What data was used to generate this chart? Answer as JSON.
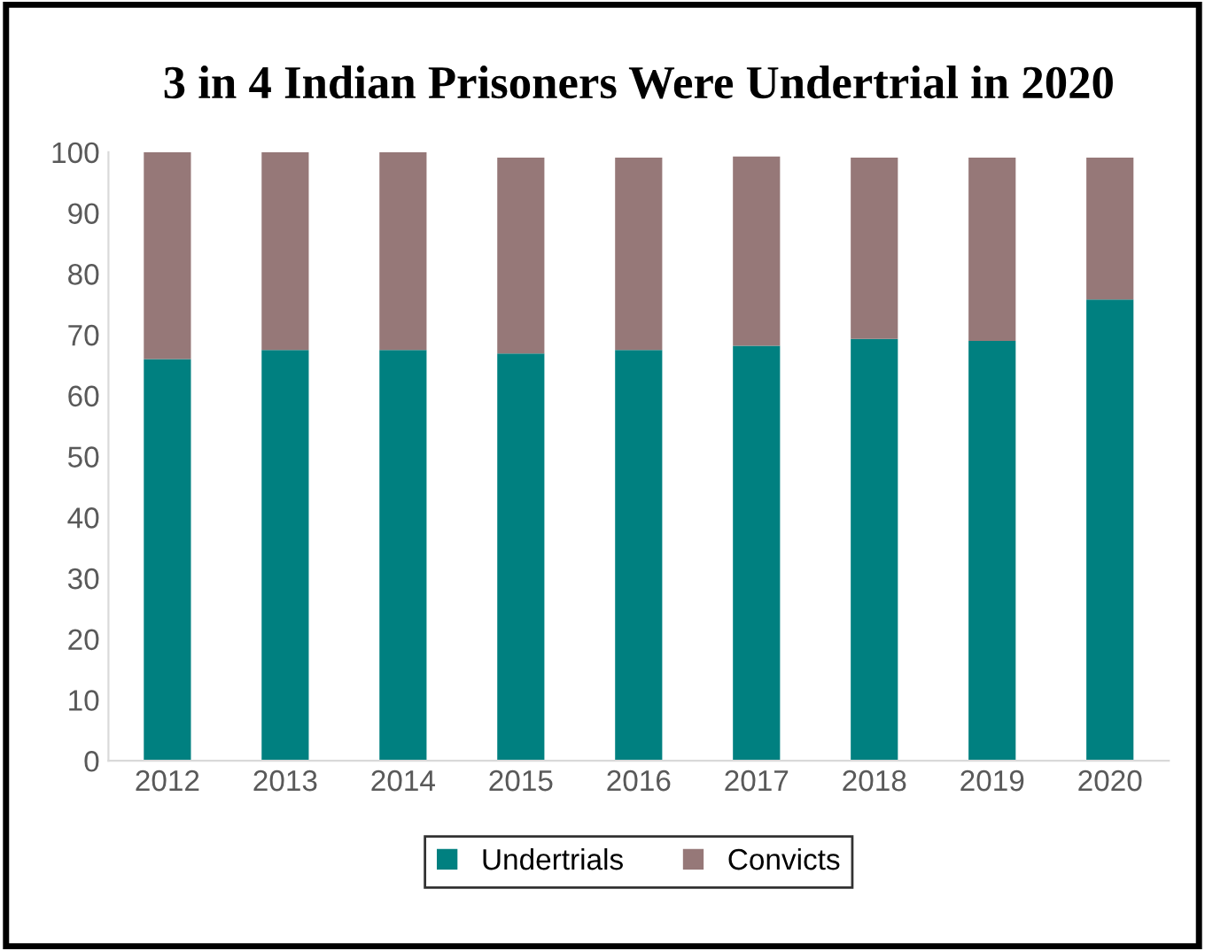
{
  "chart_data": {
    "type": "bar",
    "stacked": true,
    "title": "3 in 4 Indian Prisoners Were Undertrial in 2020",
    "categories": [
      "2012",
      "2013",
      "2014",
      "2015",
      "2016",
      "2017",
      "2018",
      "2019",
      "2020"
    ],
    "series": [
      {
        "name": "Undertrials",
        "color": "#008080",
        "values": [
          66,
          67.5,
          67.5,
          66.9,
          67.5,
          68.2,
          69.3,
          69,
          75.8
        ]
      },
      {
        "name": "Convicts",
        "color": "#967878",
        "values": [
          34,
          32.5,
          32.5,
          32.2,
          31.6,
          31.1,
          29.8,
          30.1,
          23.3
        ]
      }
    ],
    "ylim": [
      0,
      100
    ],
    "yticks": [
      0,
      10,
      20,
      30,
      40,
      50,
      60,
      70,
      80,
      90,
      100
    ],
    "grid": false,
    "legend": "bottom"
  }
}
